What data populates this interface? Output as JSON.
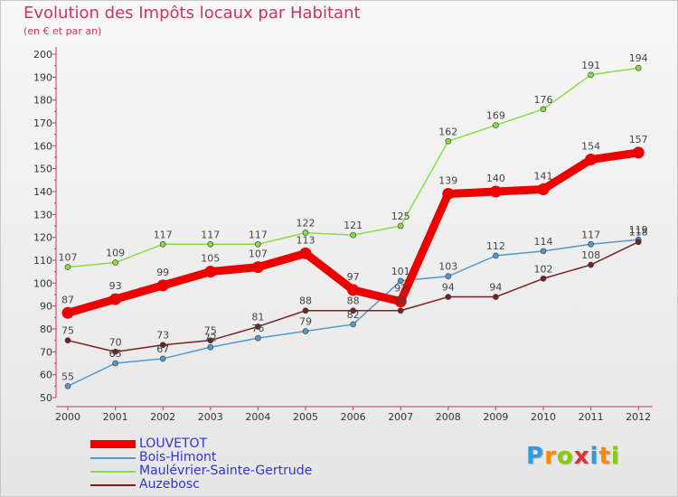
{
  "chart_data": {
    "type": "line",
    "title": "Evolution des Impôts locaux par Habitant",
    "subtitle": "(en € et par an)",
    "xlabel": "",
    "ylabel": "",
    "ylim": [
      50,
      200
    ],
    "yticks": [
      "50",
      "60",
      "70",
      "80",
      "90",
      "100",
      "110",
      "120",
      "130",
      "140",
      "150",
      "160",
      "170",
      "180",
      "190",
      "200"
    ],
    "categories": [
      "2000",
      "2001",
      "2002",
      "2003",
      "2004",
      "2005",
      "2006",
      "2007",
      "2008",
      "2009",
      "2010",
      "2011",
      "2012"
    ],
    "series": [
      {
        "name": "LOUVETOT",
        "color": "#ee0000",
        "values": [
          87,
          93,
          99,
          105,
          107,
          113,
          97,
          92,
          139,
          140,
          141,
          154,
          157
        ]
      },
      {
        "name": "Bois-Himont",
        "color": "#5599cc",
        "values": [
          55,
          65,
          67,
          72,
          76,
          79,
          82,
          101,
          103,
          112,
          114,
          117,
          119
        ]
      },
      {
        "name": "Maulévrier-Sainte-Gertrude",
        "color": "#88dd44",
        "values": [
          107,
          109,
          117,
          117,
          117,
          122,
          121,
          125,
          162,
          169,
          176,
          191,
          194
        ]
      },
      {
        "name": "Auzebosc",
        "color": "#772222",
        "values": [
          75,
          70,
          73,
          75,
          81,
          88,
          88,
          88,
          94,
          94,
          102,
          108,
          118
        ]
      }
    ],
    "legend_position": "bottom-left"
  },
  "brand": {
    "letters": [
      "P",
      "r",
      "o",
      "x",
      "i",
      "t",
      "i"
    ],
    "colors": [
      "#3399dd",
      "#ff8800",
      "#88cc00",
      "#dd3333",
      "#3399dd",
      "#ff8800",
      "#88cc00"
    ]
  }
}
